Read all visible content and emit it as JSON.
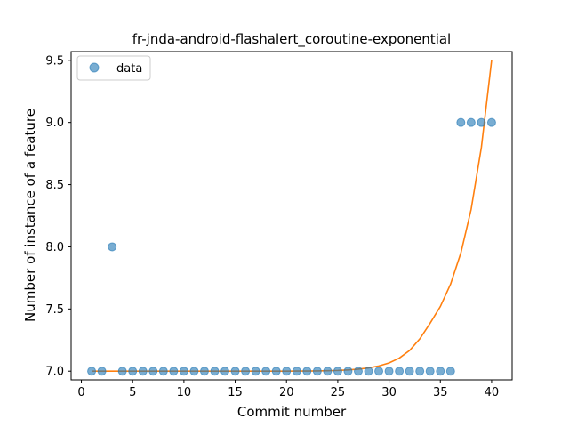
{
  "chart_data": {
    "type": "scatter",
    "title": "fr-jnda-android-flashalert_coroutine-exponential",
    "xlabel": "Commit number",
    "ylabel": "Number of instance of a feature",
    "xlim": [
      -1,
      42
    ],
    "ylim": [
      6.93,
      9.57
    ],
    "xticks": [
      0,
      5,
      10,
      15,
      20,
      25,
      30,
      35,
      40
    ],
    "yticks": [
      7.0,
      7.5,
      8.0,
      8.5,
      9.0,
      9.5
    ],
    "xtick_labels": [
      "0",
      "5",
      "10",
      "15",
      "20",
      "25",
      "30",
      "35",
      "40"
    ],
    "ytick_labels": [
      "7.0",
      "7.5",
      "8.0",
      "8.5",
      "9.0",
      "9.5"
    ],
    "grid": false,
    "legend": {
      "position": "top-left",
      "entries": [
        {
          "label": "data"
        }
      ]
    },
    "colors": {
      "data": "#1f77b4",
      "fit": "#ff7f0e"
    },
    "series": [
      {
        "name": "data",
        "kind": "scatter",
        "x": [
          1,
          2,
          3,
          4,
          5,
          6,
          7,
          8,
          9,
          10,
          11,
          12,
          13,
          14,
          15,
          16,
          17,
          18,
          19,
          20,
          21,
          22,
          23,
          24,
          25,
          26,
          27,
          28,
          29,
          30,
          31,
          32,
          33,
          34,
          35,
          36,
          37,
          38,
          39,
          40
        ],
        "y": [
          7,
          7,
          8,
          7,
          7,
          7,
          7,
          7,
          7,
          7,
          7,
          7,
          7,
          7,
          7,
          7,
          7,
          7,
          7,
          7,
          7,
          7,
          7,
          7,
          7,
          7,
          7,
          7,
          7,
          7,
          7,
          7,
          7,
          7,
          7,
          7,
          9,
          9,
          9,
          9
        ]
      },
      {
        "kind": "line",
        "x": [
          1,
          2,
          3,
          4,
          5,
          6,
          7,
          8,
          9,
          10,
          11,
          12,
          13,
          14,
          15,
          16,
          17,
          18,
          19,
          20,
          21,
          22,
          23,
          24,
          25,
          26,
          27,
          28,
          29,
          30,
          31,
          32,
          33,
          34,
          35,
          36,
          37,
          38,
          39,
          40
        ],
        "y": [
          7,
          7,
          7,
          7,
          7,
          7,
          7,
          7,
          7,
          7,
          7,
          7,
          7,
          7,
          7,
          7,
          7,
          7,
          7,
          7,
          7.001,
          7.001,
          7.002,
          7.004,
          7.006,
          7.01,
          7.016,
          7.026,
          7.042,
          7.066,
          7.105,
          7.166,
          7.26,
          7.385,
          7.52,
          7.7,
          7.95,
          8.3,
          8.8,
          9.5
        ]
      }
    ]
  }
}
